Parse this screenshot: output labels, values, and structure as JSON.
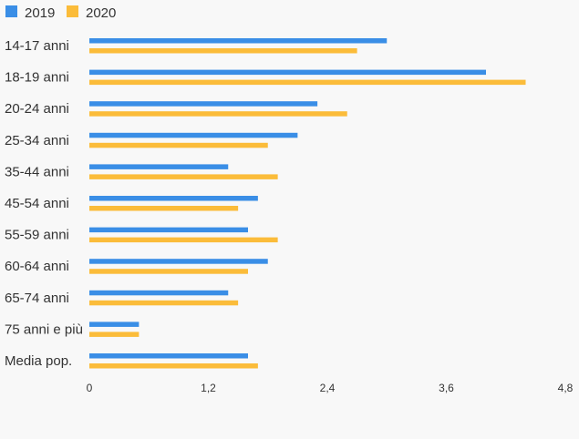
{
  "chart_data": {
    "type": "bar",
    "orientation": "horizontal",
    "categories": [
      "14-17 anni",
      "18-19 anni",
      "20-24 anni",
      "25-34 anni",
      "35-44 anni",
      "45-54 anni",
      "55-59 anni",
      "60-64 anni",
      "65-74 anni",
      "75 anni e più",
      "Media pop."
    ],
    "series": [
      {
        "name": "2019",
        "color": "#3a8ee6",
        "values": [
          3.0,
          4.0,
          2.3,
          2.1,
          1.4,
          1.7,
          1.6,
          1.8,
          1.4,
          0.5,
          1.6
        ]
      },
      {
        "name": "2020",
        "color": "#fbbc3a",
        "values": [
          2.7,
          4.4,
          2.6,
          1.8,
          1.9,
          1.5,
          1.9,
          1.6,
          1.5,
          0.5,
          1.7
        ]
      }
    ],
    "xlim": [
      0,
      4.8
    ],
    "xticks": [
      "0",
      "1,2",
      "2,4",
      "3,6",
      "4,8"
    ],
    "legend_position": "top-left",
    "grid": false
  }
}
